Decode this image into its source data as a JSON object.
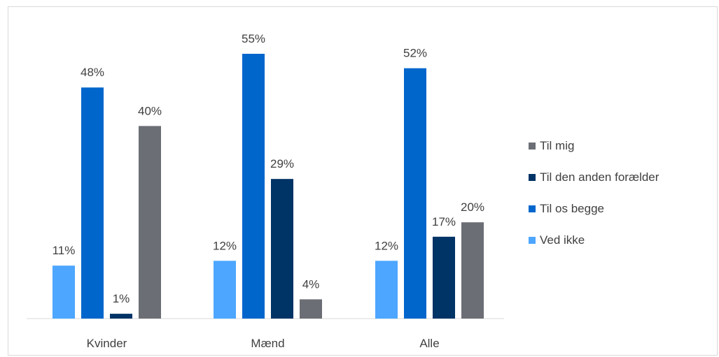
{
  "chart_data": {
    "type": "bar",
    "categories": [
      "Kvinder",
      "Mænd",
      "Alle"
    ],
    "series": [
      {
        "name": "Ved ikke",
        "color": "#4da6ff",
        "values": [
          11,
          12,
          12
        ],
        "labels": [
          "11%",
          "12%",
          "12%"
        ]
      },
      {
        "name": "Til os begge",
        "color": "#0066cc",
        "values": [
          48,
          55,
          52
        ],
        "labels": [
          "48%",
          "55%",
          "52%"
        ]
      },
      {
        "name": "Til den anden forælder",
        "color": "#003366",
        "values": [
          1,
          29,
          17
        ],
        "labels": [
          "1%",
          "29%",
          "17%"
        ]
      },
      {
        "name": "Til mig",
        "color": "#6b6e75",
        "values": [
          40,
          4,
          20
        ],
        "labels": [
          "40%",
          "4%",
          "20%"
        ]
      }
    ],
    "legend": [
      "Til mig",
      "Til den anden forælder",
      "Til os begge",
      "Ved ikke"
    ],
    "legend_position": "right",
    "ylim": [
      0,
      55
    ],
    "grid": false
  }
}
